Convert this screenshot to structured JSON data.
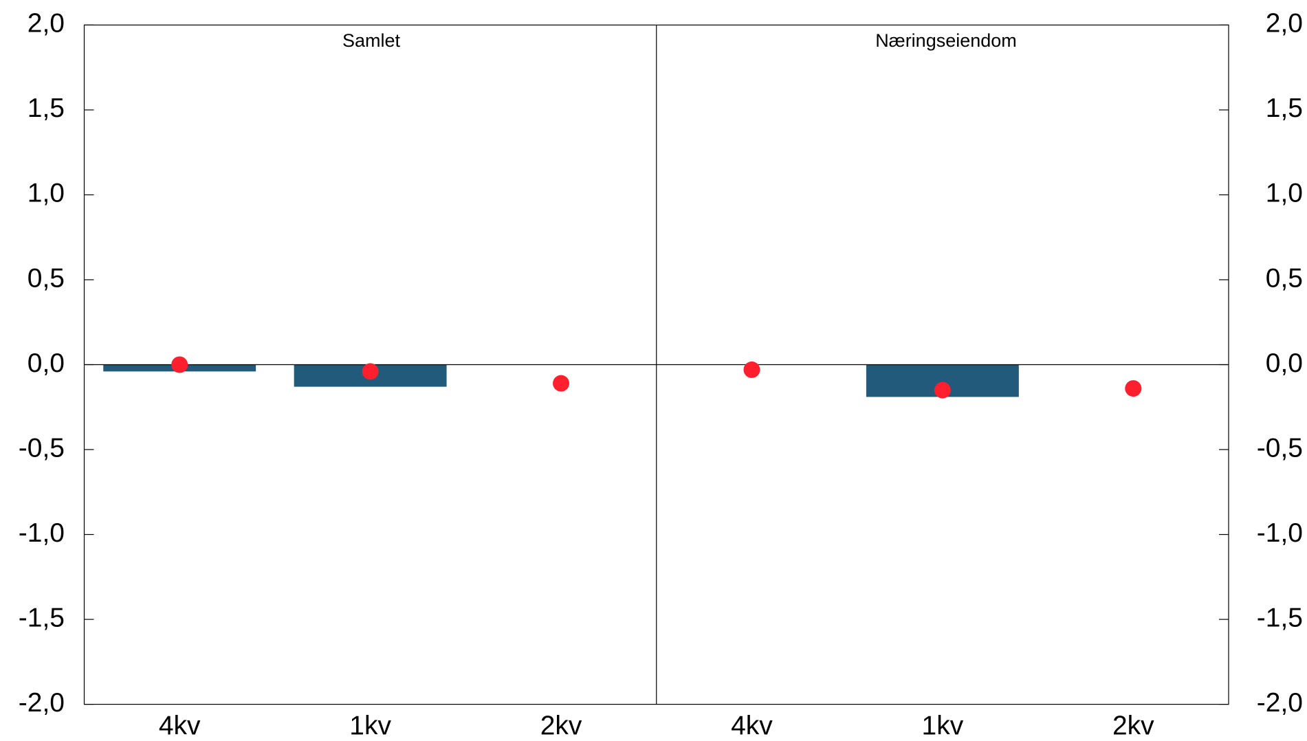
{
  "chart_data": {
    "type": "bar",
    "panels": [
      "Samlet",
      "Næringseiendom"
    ],
    "categories": [
      "4kv",
      "1kv",
      "2kv",
      "4kv",
      "1kv",
      "2kv"
    ],
    "series": [
      {
        "type": "bar",
        "color": "#215a7a",
        "values": [
          -0.04,
          -0.13,
          null,
          null,
          -0.19,
          null
        ]
      },
      {
        "type": "scatter",
        "color": "#ff1f2d",
        "values": [
          0.0,
          -0.04,
          -0.11,
          -0.03,
          -0.15,
          -0.14
        ]
      }
    ],
    "ylim": [
      -2,
      2
    ],
    "yticks": [
      {
        "value": -2,
        "label": "-2,0"
      },
      {
        "value": -1.5,
        "label": "-1,5"
      },
      {
        "value": -1,
        "label": "-1,0"
      },
      {
        "value": -0.5,
        "label": "-0,5"
      },
      {
        "value": 0,
        "label": "0,0"
      },
      {
        "value": 0.5,
        "label": "0,5"
      },
      {
        "value": 1,
        "label": "1,0"
      },
      {
        "value": 1.5,
        "label": "1,5"
      },
      {
        "value": 2,
        "label": "2,0"
      }
    ],
    "y2lim": [
      -2,
      2
    ],
    "y2ticks": [
      {
        "value": -2,
        "label": "-2,0"
      },
      {
        "value": -1.5,
        "label": "-1,5"
      },
      {
        "value": -1,
        "label": "-1,0"
      },
      {
        "value": -0.5,
        "label": "-0,5"
      },
      {
        "value": 0,
        "label": "0,0"
      },
      {
        "value": 0.5,
        "label": "0,5"
      },
      {
        "value": 1,
        "label": "1,0"
      },
      {
        "value": 1.5,
        "label": "1,5"
      },
      {
        "value": 2,
        "label": "2,0"
      }
    ]
  }
}
